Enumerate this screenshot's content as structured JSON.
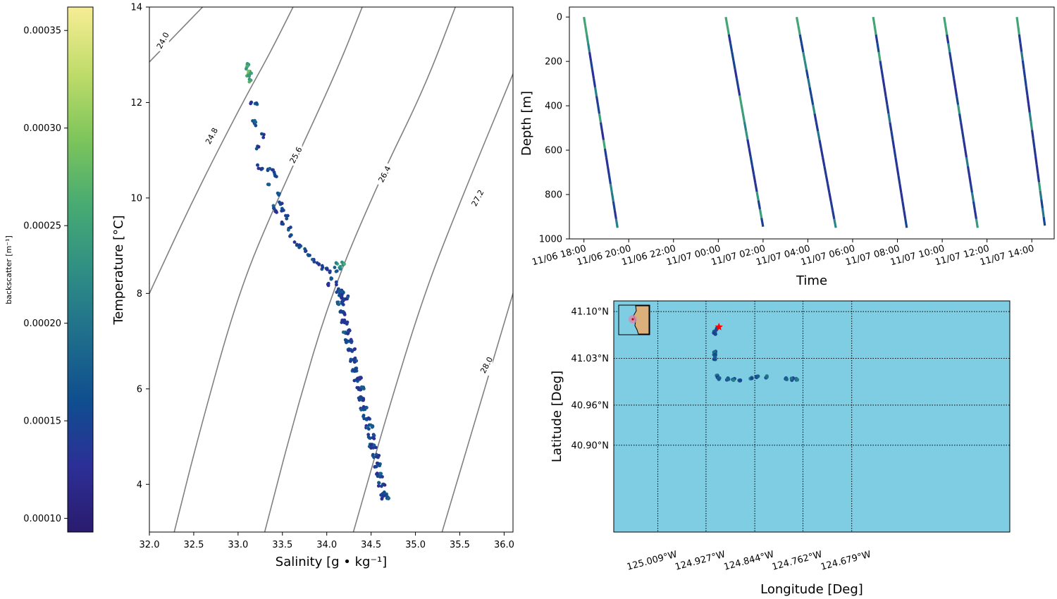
{
  "colors": {
    "viridis_stops": [
      "#2a1b6e",
      "#2c2f96",
      "#0f4e8f",
      "#1f6e8c",
      "#2f8f84",
      "#48ab72",
      "#7ec55b",
      "#c0dc6a",
      "#f7ed95"
    ],
    "contour_line": "#808080",
    "ocean": "#7ecde3",
    "land": "#dcb07a",
    "marker_star": "#ff0000"
  },
  "colorbar": {
    "label": "backscatter [m⁻¹]",
    "range": [
      9.3e-05,
      0.000362
    ],
    "ticks": [
      "0.00010",
      "0.00015",
      "0.00020",
      "0.00025",
      "0.00030",
      "0.00035"
    ],
    "tick_values": [
      0.0001,
      0.00015,
      0.0002,
      0.00025,
      0.0003,
      0.00035
    ]
  },
  "chart_data": [
    {
      "type": "scatter",
      "id": "ts",
      "xlabel": "Salinity [g • kg⁻¹]",
      "ylabel": "Temperature [°C]",
      "xlim": [
        32.0,
        36.1
      ],
      "ylim": [
        3.0,
        14.0
      ],
      "xticks": [
        "32.0",
        "32.5",
        "33.0",
        "33.5",
        "34.0",
        "34.5",
        "35.0",
        "35.5",
        "36.0"
      ],
      "xtick_values": [
        32.0,
        32.5,
        33.0,
        33.5,
        34.0,
        34.5,
        35.0,
        35.5,
        36.0
      ],
      "yticks": [
        "4",
        "6",
        "8",
        "10",
        "12",
        "14"
      ],
      "ytick_values": [
        4,
        6,
        8,
        10,
        12,
        14
      ],
      "isopycnals": [
        {
          "label": "24.0",
          "points": [
            [
              32.0,
              12.85
            ],
            [
              32.6,
              14.0
            ]
          ],
          "label_at": [
            32.15,
            13.3
          ]
        },
        {
          "label": "24.8",
          "points": [
            [
              32.0,
              8.0
            ],
            [
              32.5,
              10.0
            ],
            [
              33.05,
              12.0
            ],
            [
              33.35,
              13.0
            ],
            [
              33.62,
              14.0
            ]
          ],
          "label_at": [
            32.7,
            11.3
          ]
        },
        {
          "label": "25.6",
          "points": [
            [
              32.28,
              3.0
            ],
            [
              32.55,
              5.0
            ],
            [
              33.0,
              8.0
            ],
            [
              33.45,
              10.0
            ],
            [
              34.1,
              12.6
            ],
            [
              34.4,
              14.0
            ]
          ],
          "label_at": [
            33.65,
            10.9
          ]
        },
        {
          "label": "26.4",
          "points": [
            [
              33.3,
              3.0
            ],
            [
              33.65,
              5.5
            ],
            [
              34.05,
              8.0
            ],
            [
              34.6,
              10.4
            ],
            [
              35.1,
              12.3
            ],
            [
              35.45,
              14.0
            ]
          ],
          "label_at": [
            34.65,
            10.5
          ]
        },
        {
          "label": "27.2",
          "points": [
            [
              34.3,
              3.0
            ],
            [
              34.7,
              5.6
            ],
            [
              35.1,
              8.0
            ],
            [
              35.5,
              9.9
            ],
            [
              36.1,
              12.6
            ]
          ],
          "label_at": [
            35.7,
            10.0
          ]
        },
        {
          "label": "28.0",
          "points": [
            [
              35.3,
              3.0
            ],
            [
              35.7,
              5.5
            ],
            [
              36.1,
              8.0
            ]
          ],
          "label_at": [
            35.8,
            6.5
          ]
        }
      ],
      "series": [
        {
          "points": [
            [
              33.12,
              12.8
            ],
            [
              33.1,
              12.72
            ],
            [
              33.13,
              12.65
            ],
            [
              33.11,
              12.55
            ],
            [
              33.14,
              12.6
            ],
            [
              33.1,
              12.78
            ],
            [
              33.13,
              12.45
            ],
            [
              33.15,
              12.0
            ],
            [
              33.2,
              12.0
            ],
            [
              33.18,
              11.6
            ],
            [
              33.2,
              11.55
            ],
            [
              33.22,
              11.05
            ],
            [
              33.28,
              11.3
            ],
            [
              33.22,
              10.65
            ],
            [
              33.27,
              10.58
            ],
            [
              33.35,
              10.6
            ],
            [
              33.4,
              10.55
            ],
            [
              33.42,
              10.45
            ],
            [
              33.35,
              10.32
            ],
            [
              33.45,
              10.1
            ],
            [
              33.4,
              9.8
            ],
            [
              33.48,
              9.9
            ],
            [
              33.42,
              9.7
            ],
            [
              33.5,
              9.75
            ],
            [
              33.55,
              9.6
            ],
            [
              33.5,
              9.45
            ],
            [
              33.58,
              9.35
            ],
            [
              33.6,
              9.2
            ],
            [
              33.65,
              9.05
            ],
            [
              33.7,
              9.0
            ],
            [
              33.75,
              8.9
            ],
            [
              33.8,
              8.8
            ],
            [
              33.85,
              8.7
            ],
            [
              33.9,
              8.6
            ],
            [
              33.95,
              8.55
            ],
            [
              34.0,
              8.5
            ],
            [
              34.05,
              8.45
            ],
            [
              34.1,
              8.5
            ],
            [
              34.15,
              8.55
            ],
            [
              34.18,
              8.62
            ],
            [
              34.12,
              8.62
            ],
            [
              34.2,
              8.6
            ],
            [
              34.05,
              8.3
            ],
            [
              34.02,
              8.2
            ],
            [
              34.1,
              8.2
            ],
            [
              34.15,
              8.05
            ],
            [
              34.18,
              8.0
            ],
            [
              34.2,
              7.9
            ],
            [
              34.15,
              7.8
            ],
            [
              34.18,
              7.6
            ],
            [
              34.2,
              7.4
            ],
            [
              34.22,
              7.2
            ],
            [
              34.25,
              7.0
            ],
            [
              34.28,
              6.8
            ],
            [
              34.3,
              6.6
            ],
            [
              34.32,
              6.4
            ],
            [
              34.35,
              6.2
            ],
            [
              34.38,
              6.0
            ],
            [
              34.4,
              5.8
            ],
            [
              34.42,
              5.6
            ],
            [
              34.45,
              5.4
            ],
            [
              34.48,
              5.2
            ],
            [
              34.5,
              5.0
            ],
            [
              34.52,
              4.8
            ],
            [
              34.55,
              4.6
            ],
            [
              34.57,
              4.4
            ],
            [
              34.6,
              4.2
            ],
            [
              34.62,
              4.0
            ],
            [
              34.65,
              3.8
            ],
            [
              34.66,
              3.72
            ]
          ]
        }
      ]
    },
    {
      "type": "scatter",
      "id": "depth",
      "xlabel": "Time",
      "ylabel": "Depth [m]",
      "ylim": [
        1000,
        -45
      ],
      "xticks": [
        "11/06 18:00",
        "11/06 20:00",
        "11/06 22:00",
        "11/07 00:00",
        "11/07 02:00",
        "11/07 04:00",
        "11/07 06:00",
        "11/07 08:00",
        "11/07 10:00",
        "11/07 12:00",
        "11/07 14:00"
      ],
      "yticks": [
        "0",
        "200",
        "400",
        "600",
        "800",
        "1000"
      ],
      "ytick_values": [
        0,
        200,
        400,
        600,
        800,
        1000
      ],
      "profiles": [
        {
          "start": "11/06 18:00",
          "end": "11/06 19:30",
          "max_depth": 950
        },
        {
          "start": "11/07 00:20",
          "end": "11/07 02:00",
          "max_depth": 945
        },
        {
          "start": "11/07 03:30",
          "end": "11/07 05:15",
          "max_depth": 950
        },
        {
          "start": "11/07 06:55",
          "end": "11/07 08:25",
          "max_depth": 950
        },
        {
          "start": "11/07 10:05",
          "end": "11/07 11:35",
          "max_depth": 950
        },
        {
          "start": "11/07 13:20",
          "end": "11/07 14:35",
          "max_depth": 940
        }
      ]
    },
    {
      "type": "scatter",
      "id": "map",
      "xlabel": "Longitude [Deg]",
      "ylabel": "Latitude [Deg]",
      "xticks": [
        "125.009°W",
        "124.927°W",
        "124.844°W",
        "124.762°W",
        "124.679°W"
      ],
      "xtick_values": [
        -125.009,
        -124.927,
        -124.844,
        -124.762,
        -124.679
      ],
      "yticks": [
        "41.10°N",
        "41.03°N",
        "40.96°N",
        "40.90°N"
      ],
      "ytick_values": [
        41.1,
        41.03,
        40.96,
        40.9
      ],
      "xlim": [
        -125.084,
        -124.41
      ],
      "ylim": [
        40.77,
        41.116
      ],
      "track": [
        [
          -124.91,
          41.074
        ],
        [
          -124.913,
          41.069
        ],
        [
          -124.912,
          41.067
        ],
        [
          -124.912,
          41.04
        ],
        [
          -124.912,
          41.035
        ],
        [
          -124.912,
          41.03
        ],
        [
          -124.908,
          41.003
        ],
        [
          -124.905,
          41.0
        ],
        [
          -124.89,
          40.999
        ],
        [
          -124.88,
          40.998
        ],
        [
          -124.87,
          40.998
        ],
        [
          -124.85,
          41.001
        ],
        [
          -124.84,
          41.002
        ],
        [
          -124.825,
          41.002
        ],
        [
          -124.79,
          41.0
        ],
        [
          -124.78,
          40.999
        ],
        [
          -124.772,
          40.999
        ]
      ],
      "release_star": [
        -124.905,
        41.077
      ]
    }
  ]
}
